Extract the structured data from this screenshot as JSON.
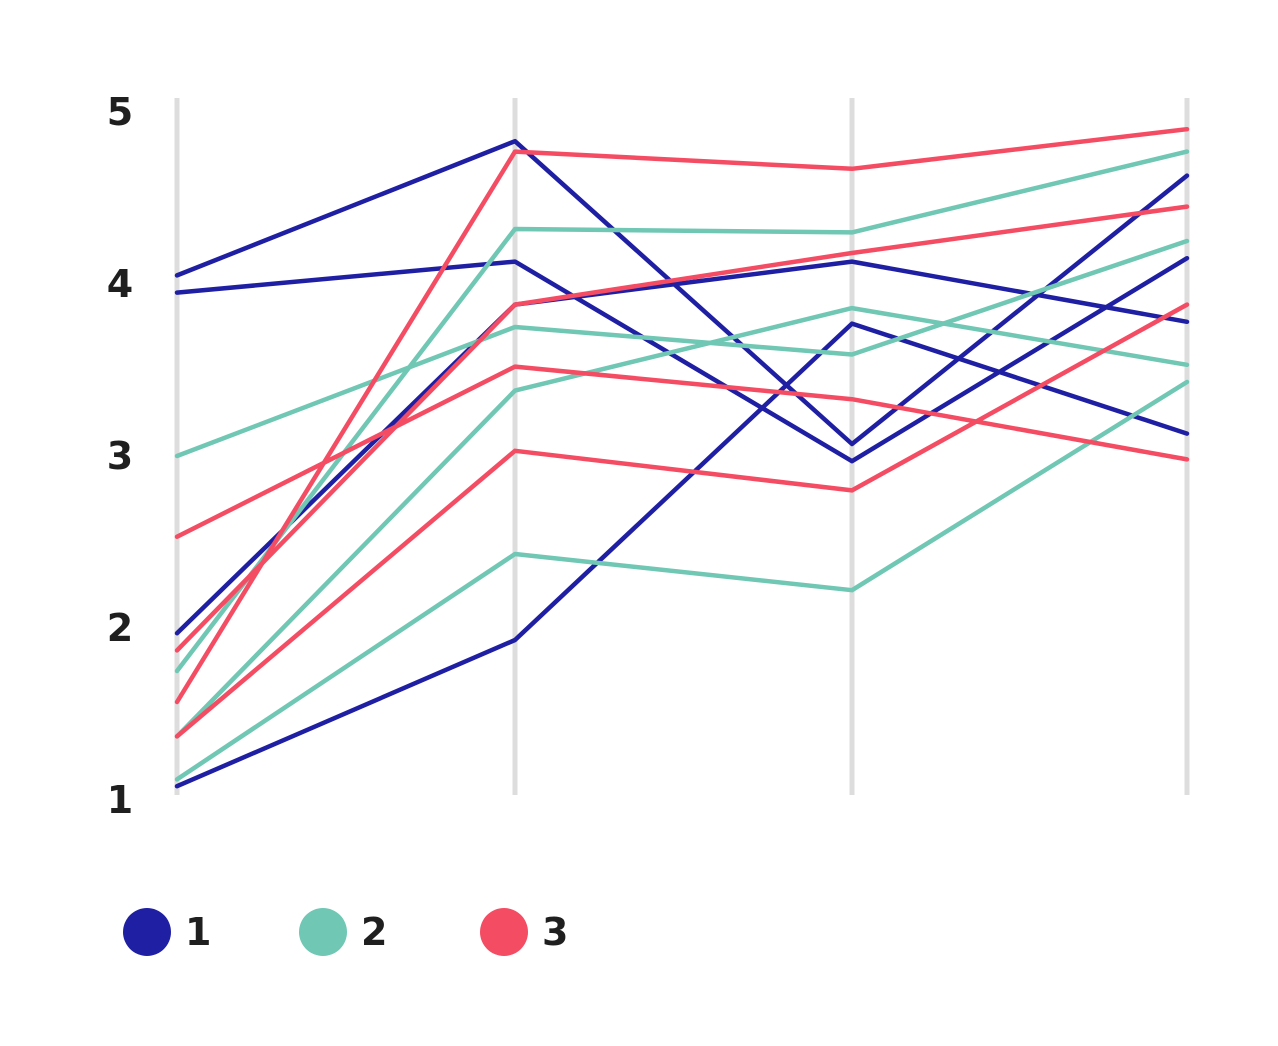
{
  "chart_data": {
    "type": "line",
    "chart_kind": "parallel-coordinates",
    "title": "",
    "xlabel": "",
    "ylabel": "",
    "ylim": [
      1,
      5
    ],
    "y_ticks": [
      "1",
      "2",
      "3",
      "4",
      "5"
    ],
    "axes_count": 4,
    "grid": false,
    "legend_position": "bottom-left",
    "legend": [
      {
        "label": "1",
        "color": "#1f1fa3"
      },
      {
        "label": "2",
        "color": "#6fc7b4"
      },
      {
        "label": "3",
        "color": "#f44c63"
      }
    ],
    "lines": [
      {
        "group": "1",
        "values": [
          4.05,
          4.83,
          3.07,
          4.63
        ]
      },
      {
        "group": "1",
        "values": [
          3.95,
          4.13,
          2.97,
          4.15
        ]
      },
      {
        "group": "1",
        "values": [
          1.97,
          3.88,
          4.13,
          3.78
        ]
      },
      {
        "group": "1",
        "values": [
          1.08,
          1.93,
          3.77,
          3.13
        ]
      },
      {
        "group": "2",
        "values": [
          3.0,
          3.75,
          3.59,
          4.25
        ]
      },
      {
        "group": "2",
        "values": [
          1.75,
          4.32,
          4.3,
          4.77
        ]
      },
      {
        "group": "2",
        "values": [
          1.37,
          3.38,
          3.86,
          3.53
        ]
      },
      {
        "group": "2",
        "values": [
          1.12,
          2.43,
          2.22,
          3.43
        ]
      },
      {
        "group": "3",
        "values": [
          2.53,
          3.52,
          3.33,
          2.98
        ]
      },
      {
        "group": "3",
        "values": [
          1.87,
          3.88,
          4.18,
          4.45
        ]
      },
      {
        "group": "3",
        "values": [
          1.57,
          4.77,
          4.67,
          4.9
        ]
      },
      {
        "group": "3",
        "values": [
          1.37,
          3.03,
          2.8,
          3.88
        ]
      }
    ]
  }
}
